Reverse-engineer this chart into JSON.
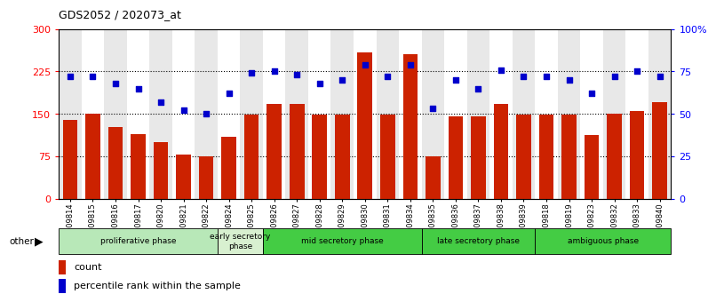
{
  "title": "GDS2052 / 202073_at",
  "samples": [
    "GSM109814",
    "GSM109815",
    "GSM109816",
    "GSM109817",
    "GSM109820",
    "GSM109821",
    "GSM109822",
    "GSM109824",
    "GSM109825",
    "GSM109826",
    "GSM109827",
    "GSM109828",
    "GSM109829",
    "GSM109830",
    "GSM109831",
    "GSM109834",
    "GSM109835",
    "GSM109836",
    "GSM109837",
    "GSM109838",
    "GSM109839",
    "GSM109818",
    "GSM109819",
    "GSM109823",
    "GSM109832",
    "GSM109833",
    "GSM109840"
  ],
  "counts": [
    140,
    150,
    127,
    115,
    100,
    78,
    75,
    110,
    148,
    168,
    168,
    148,
    148,
    258,
    148,
    255,
    75,
    145,
    145,
    168,
    148,
    148,
    148,
    113,
    150,
    155,
    170
  ],
  "percentiles": [
    72,
    72,
    68,
    65,
    57,
    52,
    50,
    62,
    74,
    75,
    73,
    68,
    70,
    79,
    72,
    79,
    53,
    70,
    65,
    76,
    72,
    72,
    70,
    62,
    72,
    75,
    72
  ],
  "phases": [
    {
      "label": "proliferative phase",
      "start": 0,
      "end": 7,
      "color": "#b8e8b8"
    },
    {
      "label": "early secretory\nphase",
      "start": 7,
      "end": 9,
      "color": "#d8f0d0"
    },
    {
      "label": "mid secretory phase",
      "start": 9,
      "end": 16,
      "color": "#44cc44"
    },
    {
      "label": "late secretory phase",
      "start": 16,
      "end": 21,
      "color": "#44cc44"
    },
    {
      "label": "ambiguous phase",
      "start": 21,
      "end": 27,
      "color": "#44cc44"
    }
  ],
  "bar_color": "#CC2200",
  "dot_color": "#0000CC",
  "ylim_left": [
    0,
    300
  ],
  "ylim_right": [
    0,
    100
  ],
  "yticks_left": [
    0,
    75,
    150,
    225,
    300
  ],
  "yticks_right": [
    0,
    25,
    50,
    75,
    100
  ],
  "ylabel_right_labels": [
    "0",
    "25",
    "50",
    "75",
    "100%"
  ],
  "grid_lines": [
    75,
    150,
    225
  ],
  "col_bg_even": "#e8e8e8",
  "col_bg_odd": "#ffffff"
}
